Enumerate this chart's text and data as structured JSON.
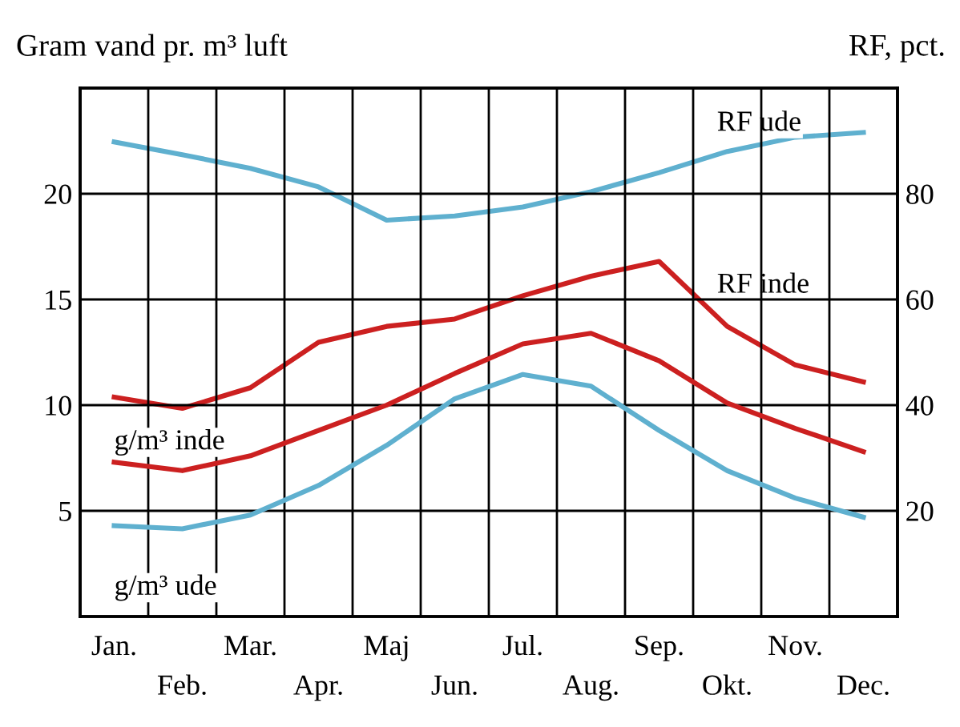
{
  "chart_data": {
    "type": "line",
    "ylabel": "Gram vand pr. m³ luft",
    "y2label": "RF, pct.",
    "categories": [
      "Jan.",
      "Feb.",
      "Mar.",
      "Apr.",
      "Maj",
      "Jun.",
      "Jul.",
      "Aug.",
      "Sep.",
      "Okt.",
      "Nov.",
      "Dec."
    ],
    "ylim": [
      0,
      25
    ],
    "yticks": [
      5,
      10,
      15,
      20
    ],
    "y2lim": [
      0,
      100
    ],
    "y2ticks": [
      20,
      40,
      60,
      80
    ],
    "grid": true,
    "line_style": "solid",
    "marker": "none",
    "series": [
      {
        "name": "RF ude",
        "color": "#5fb0cf",
        "axis": "y2",
        "values": [
          89.8,
          87.4,
          84.8,
          81.3,
          75,
          75.8,
          77.5,
          80.4,
          84,
          88,
          90.7,
          91.6
        ]
      },
      {
        "name": "RF inde",
        "color": "#cc2020",
        "axis": "y2",
        "values": [
          41.5,
          39.4,
          43.3,
          51.9,
          54.9,
          56.3,
          60.7,
          64.4,
          67.2,
          54.9,
          47.6,
          44.4
        ]
      },
      {
        "name": "g/m³ inde",
        "color": "#cc2020",
        "values": [
          7.3,
          6.9,
          7.6,
          8.8,
          10.0,
          11.5,
          12.9,
          13.4,
          12.1,
          10.1,
          8.9,
          7.8
        ]
      },
      {
        "name": "g/m³ ude",
        "color": "#5fb0cf",
        "values": [
          4.3,
          4.15,
          4.8,
          6.2,
          8.1,
          10.3,
          11.45,
          10.9,
          8.8,
          6.9,
          5.6,
          4.7
        ]
      }
    ]
  }
}
